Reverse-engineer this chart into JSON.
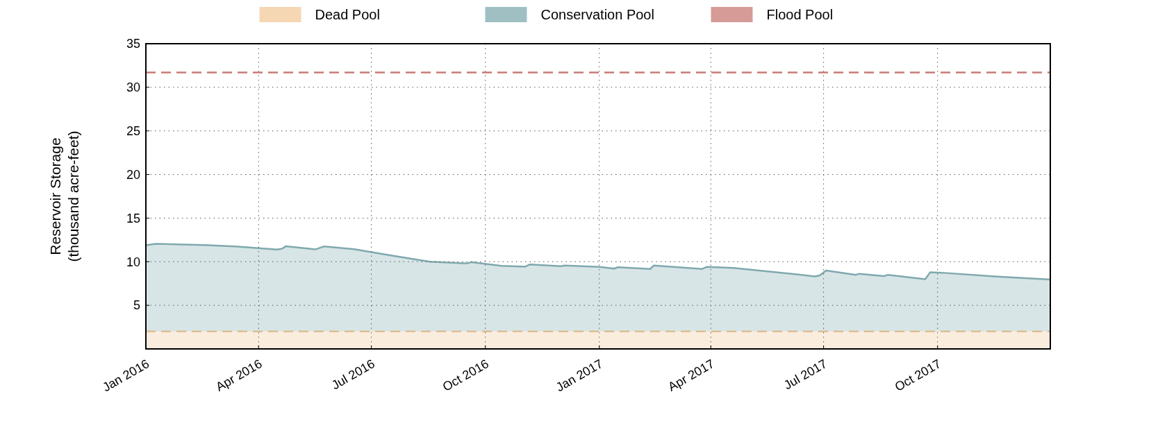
{
  "chart_data": {
    "type": "area",
    "ylabel": "Reservoir Storage\n(thousand acre-feet)",
    "xlim": [
      "2016-01-01",
      "2017-12-31"
    ],
    "ylim": [
      0,
      35
    ],
    "yticks": [
      5,
      10,
      15,
      20,
      25,
      30,
      35
    ],
    "xticks": [
      {
        "value": "2016-01-01",
        "label": "Jan 2016"
      },
      {
        "value": "2016-04-01",
        "label": "Apr 2016"
      },
      {
        "value": "2016-07-01",
        "label": "Jul 2016"
      },
      {
        "value": "2016-10-01",
        "label": "Oct 2016"
      },
      {
        "value": "2017-01-01",
        "label": "Jan 2017"
      },
      {
        "value": "2017-04-01",
        "label": "Apr 2017"
      },
      {
        "value": "2017-07-01",
        "label": "Jul 2017"
      },
      {
        "value": "2017-10-01",
        "label": "Oct 2017"
      }
    ],
    "grid": true,
    "legend": "top",
    "line_style": "solid",
    "marker": "none",
    "x": [
      "2016-01-01",
      "2016-01-09",
      "2016-02-17",
      "2016-03-13",
      "2016-04-16",
      "2016-04-20",
      "2016-04-23",
      "2016-05-17",
      "2016-05-24",
      "2016-06-18",
      "2016-07-16",
      "2016-08-17",
      "2016-09-16",
      "2016-09-20",
      "2016-10-14",
      "2016-10-31",
      "2016-11-02",
      "2016-11-06",
      "2016-12-01",
      "2016-12-04",
      "2017-01-01",
      "2017-01-13",
      "2017-01-16",
      "2017-02-11",
      "2017-02-14",
      "2017-03-25",
      "2017-03-29",
      "2017-04-19",
      "2017-06-08",
      "2017-06-24",
      "2017-06-28",
      "2017-07-03",
      "2017-07-27",
      "2017-07-30",
      "2017-08-19",
      "2017-08-22",
      "2017-09-21",
      "2017-09-25",
      "2017-10-04",
      "2017-11-16",
      "2017-12-31"
    ],
    "series": [
      {
        "name": "Conservation Pool",
        "color": "#7fa9ae",
        "values": [
          11.9,
          12.05,
          11.92,
          11.75,
          11.4,
          11.5,
          11.78,
          11.42,
          11.76,
          11.42,
          10.74,
          10.0,
          9.8,
          9.95,
          9.53,
          9.44,
          9.42,
          9.69,
          9.49,
          9.57,
          9.41,
          9.21,
          9.37,
          9.17,
          9.57,
          9.17,
          9.41,
          9.29,
          8.58,
          8.31,
          8.43,
          8.98,
          8.5,
          8.62,
          8.35,
          8.5,
          7.99,
          8.78,
          8.74,
          8.31,
          7.95
        ]
      }
    ],
    "bands": [
      {
        "axis": "y",
        "from": 0,
        "to": 2,
        "label": "Dead Pool",
        "color": "#f5d3ac"
      }
    ],
    "ref_lines": [
      {
        "axis": "y",
        "value": 2,
        "color": "#ddbf94",
        "line_style": "dashed"
      },
      {
        "axis": "y",
        "value": 31.7,
        "label": "Flood Pool",
        "color": "#c87a74",
        "line_style": "dashed"
      }
    ]
  }
}
